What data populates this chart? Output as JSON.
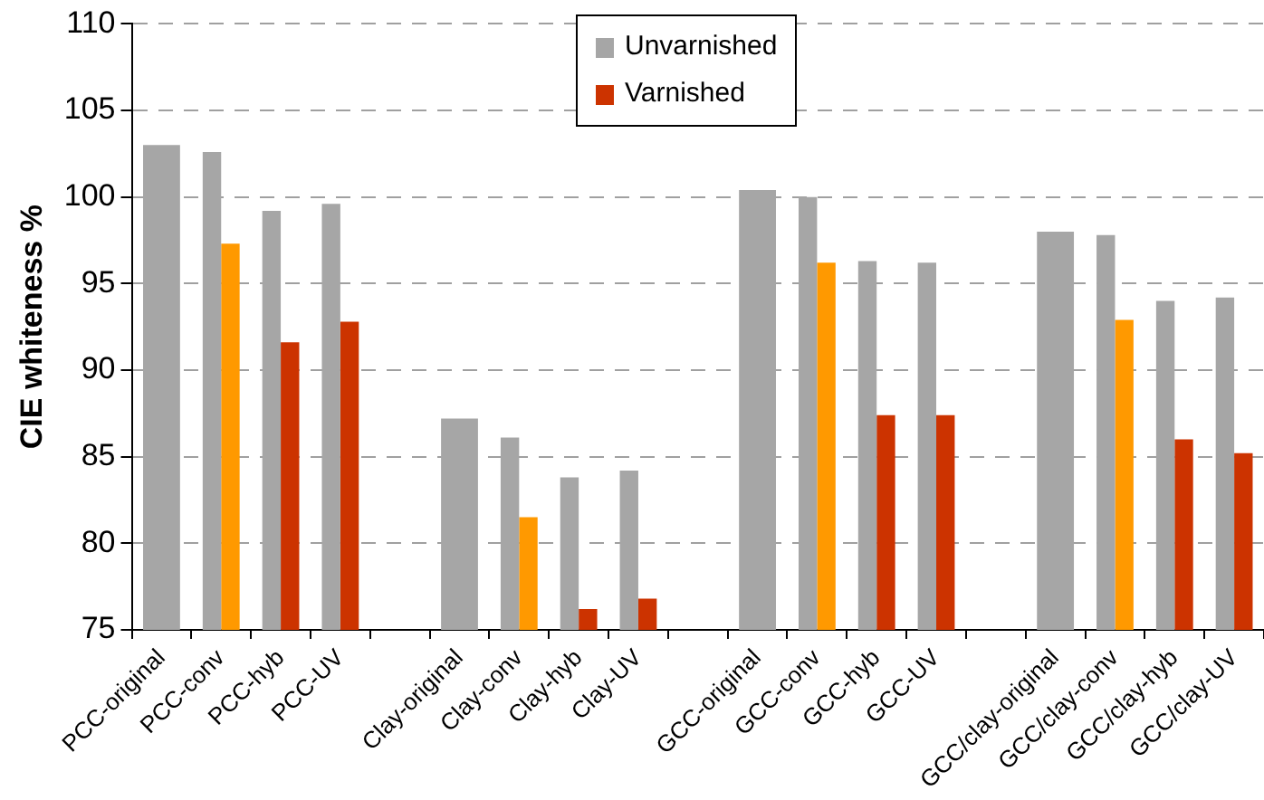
{
  "chart_data": {
    "type": "bar",
    "ylabel": "CIE whiteness %",
    "categories": [
      "PCC-original",
      "PCC-conv",
      "PCC-hyb",
      "PCC-UV",
      null,
      "Clay-original",
      "Clay-conv",
      "Clay-hyb",
      "Clay-UV",
      null,
      "GCC-original",
      "GCC-conv",
      "GCC-hyb",
      "GCC-UV",
      null,
      "GCC/clay-original",
      "GCC/clay-conv",
      "GCC/clay-hyb",
      "GCC/clay-UV"
    ],
    "series": [
      {
        "name": "Unvarnished",
        "color": "#a6a6a6",
        "values": [
          103.0,
          102.6,
          99.2,
          99.6,
          null,
          87.2,
          86.1,
          83.8,
          84.2,
          null,
          100.4,
          100.0,
          96.3,
          96.2,
          null,
          98.0,
          97.8,
          94.0,
          94.2
        ]
      },
      {
        "name": "Varnished",
        "color": "#cc3300",
        "colors": [
          "#cc3300",
          "#ff9900",
          "#cc3300",
          "#cc3300",
          "#cc3300",
          "#cc3300",
          "#ff9900",
          "#cc3300",
          "#cc3300",
          "#cc3300",
          "#cc3300",
          "#ff9900",
          "#cc3300",
          "#cc3300",
          "#cc3300",
          "#cc3300",
          "#ff9900",
          "#cc3300",
          "#cc3300"
        ],
        "values": [
          null,
          97.3,
          91.6,
          92.8,
          null,
          null,
          81.5,
          76.2,
          76.8,
          null,
          null,
          96.2,
          87.4,
          87.4,
          null,
          null,
          92.9,
          86.0,
          85.2
        ]
      }
    ],
    "ylim": [
      75,
      110
    ],
    "yticks": [
      75,
      80,
      85,
      90,
      95,
      100,
      105,
      110
    ],
    "grid": "y",
    "legend": "top"
  }
}
